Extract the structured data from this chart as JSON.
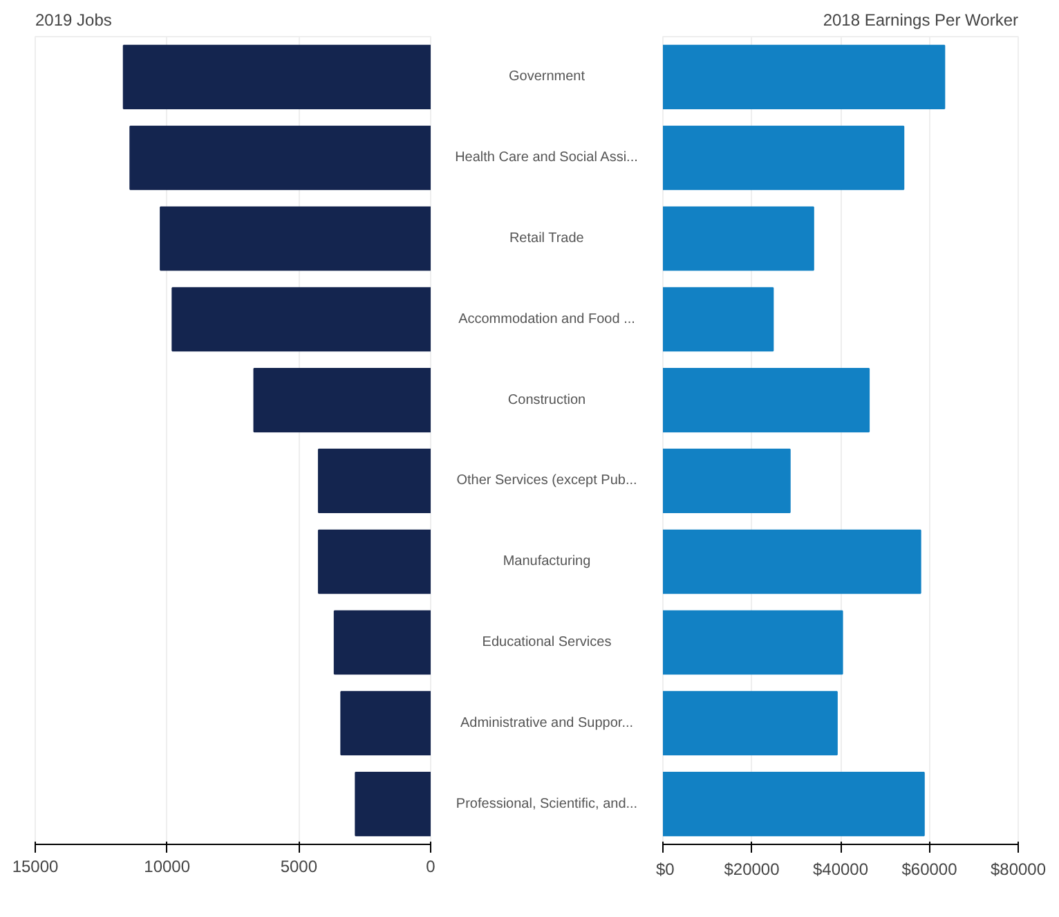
{
  "chart_data": [
    {
      "type": "bar",
      "orientation": "horizontal",
      "title": "2019 Jobs",
      "categories": [
        null,
        null,
        null,
        null,
        null,
        null,
        null,
        null,
        null,
        null
      ],
      "values": [
        11650,
        11400,
        10250,
        9800,
        6700,
        4250,
        4250,
        3650,
        3400,
        2850
      ],
      "color": "#14254f",
      "xlim": [
        15000,
        0
      ],
      "xticks": [
        15000,
        10000,
        5000,
        0
      ],
      "grid": "x",
      "tick_labels": "x"
    },
    {
      "type": "bar",
      "orientation": "horizontal",
      "title": "2018 Earnings Per Worker",
      "categories": [
        "Government",
        "Health Care and Social Assi...",
        "Retail Trade",
        "Accommodation and Food ...",
        "Construction",
        "Other Services (except Pub...",
        "Manufacturing",
        "Educational Services",
        "Administrative and Suppor...",
        "Professional, Scientific, and..."
      ],
      "values": [
        63400,
        54200,
        33900,
        24800,
        46400,
        28600,
        58000,
        40400,
        39200,
        58800
      ],
      "color": "#1281c4",
      "xlim": [
        0,
        80000
      ],
      "xticks": [
        {
          "value": 0,
          "label": "$0"
        },
        {
          "value": 20000,
          "label": "$20000"
        },
        {
          "value": 40000,
          "label": "$40000"
        },
        {
          "value": 60000,
          "label": "$60000"
        },
        {
          "value": 80000,
          "label": "$80000"
        }
      ],
      "grid": "x"
    }
  ]
}
